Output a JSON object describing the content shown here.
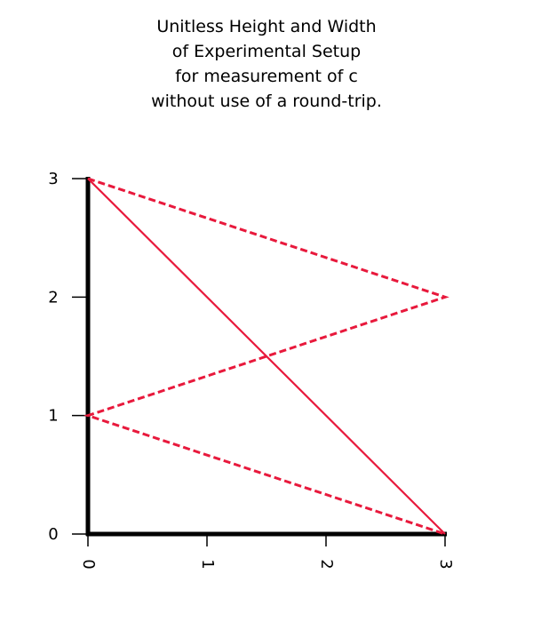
{
  "title_lines": [
    "Unitless Height and Width",
    "of Experimental Setup",
    "for measurement of c",
    "without use of a round-trip."
  ],
  "colors": {
    "axis": "#000000",
    "path": "#e8193c"
  },
  "chart_data": {
    "type": "line",
    "title": "Unitless Height and Width of Experimental Setup for measurement of c without use of a round-trip.",
    "xlim": [
      0,
      3
    ],
    "ylim": [
      0,
      3
    ],
    "x_ticks": [
      "0",
      "1",
      "2",
      "3"
    ],
    "y_ticks": [
      "0",
      "1",
      "2",
      "3"
    ],
    "grid": false,
    "series": [
      {
        "style": "solid",
        "x": [
          0,
          3
        ],
        "y": [
          3,
          0
        ]
      },
      {
        "style": "dashed",
        "x": [
          0,
          3,
          0,
          3
        ],
        "y": [
          3,
          2,
          1,
          0
        ]
      }
    ]
  }
}
